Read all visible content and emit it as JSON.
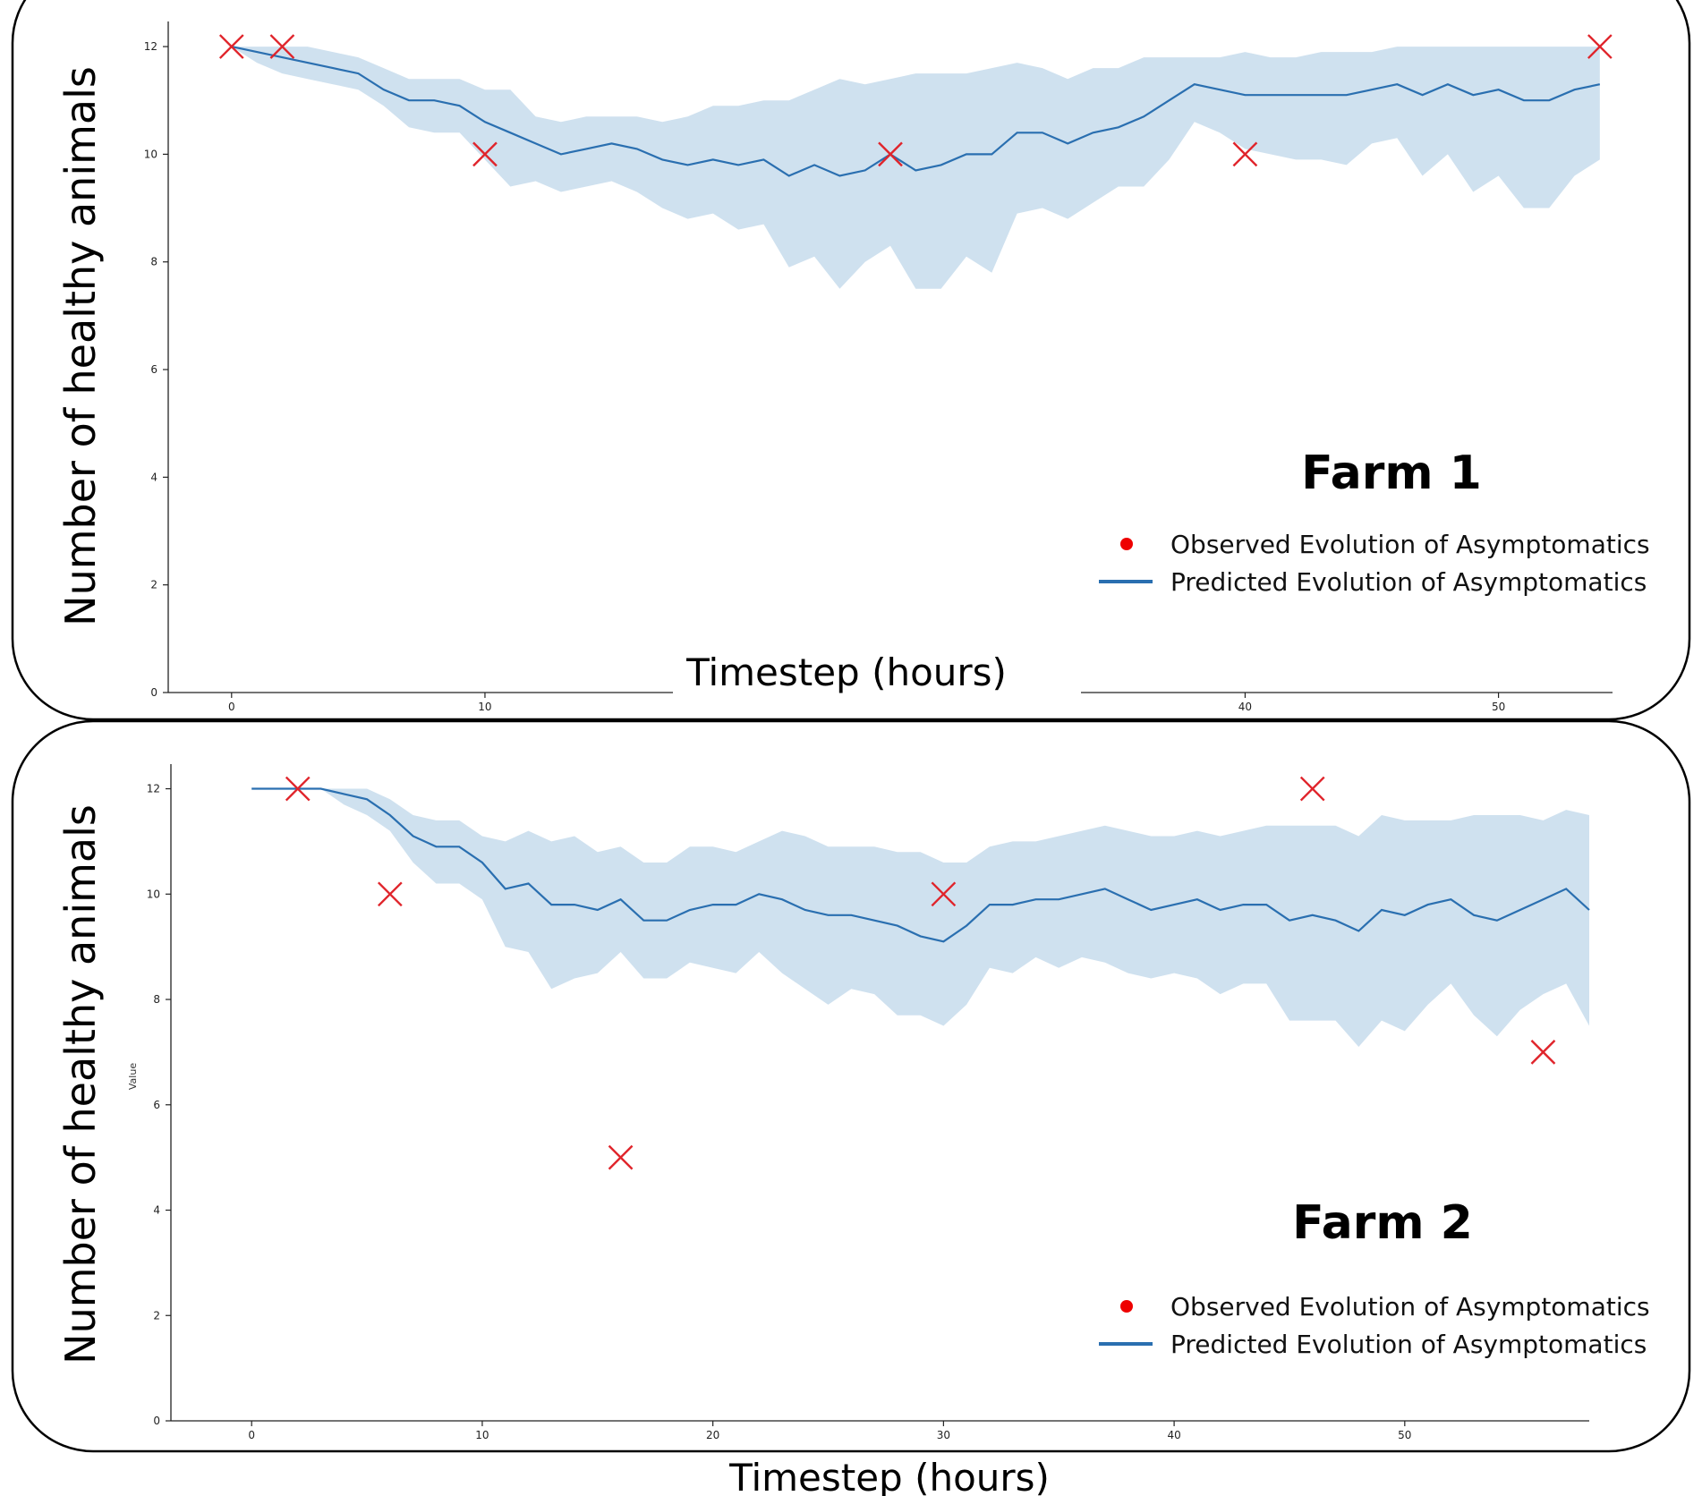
{
  "colors": {
    "band": "#cfe1ef",
    "line": "#2a6fb0",
    "marker": "#e0242b",
    "legend_dot": "#ee0000",
    "axis": "#222222",
    "frame": "#000000"
  },
  "chart_data": [
    {
      "type": "line",
      "panel_label": "Farm 1",
      "xlabel": "Timestep (hours)",
      "ylabel": "Number of healthy animals",
      "xlim": [
        -2.5,
        54.5
      ],
      "ylim": [
        0,
        12.4
      ],
      "xticks": [
        0,
        10,
        40,
        50
      ],
      "xtick_labels": [
        "0",
        "10",
        "40",
        "50"
      ],
      "yticks": [
        0,
        2,
        4,
        6,
        8,
        10,
        12
      ],
      "ytick_labels": [
        "0",
        "2",
        "4",
        "6",
        "8",
        "10",
        "12"
      ],
      "legend": {
        "position": "lower-right",
        "observed": "Observed Evolution of Asymptomatics",
        "predicted": "Predicted Evolution of Asymptomatics"
      },
      "predicted": {
        "x": [
          0,
          1,
          2,
          3,
          4,
          5,
          6,
          7,
          8,
          9,
          10,
          11,
          12,
          13,
          14,
          15,
          16,
          17,
          18,
          19,
          20,
          21,
          22,
          23,
          24,
          25,
          26,
          27,
          28,
          29,
          30,
          31,
          32,
          33,
          34,
          35,
          36,
          37,
          38,
          39,
          40,
          41,
          42,
          43,
          44,
          45,
          46,
          47,
          48,
          49,
          50,
          51,
          52,
          53,
          54
        ],
        "mean": [
          12.0,
          11.9,
          11.8,
          11.7,
          11.6,
          11.5,
          11.2,
          11.0,
          11.0,
          10.9,
          10.6,
          10.4,
          10.2,
          10.0,
          10.1,
          10.2,
          10.1,
          9.9,
          9.8,
          9.9,
          9.8,
          9.9,
          9.6,
          9.8,
          9.6,
          9.7,
          10.0,
          9.7,
          9.8,
          10.0,
          10.0,
          10.4,
          10.4,
          10.2,
          10.4,
          10.5,
          10.7,
          11.0,
          11.3,
          11.2,
          11.1,
          11.1,
          11.1,
          11.1,
          11.1,
          11.2,
          11.3,
          11.1,
          11.3,
          11.1,
          11.2,
          11.0,
          11.0,
          11.2,
          11.3
        ],
        "upper": [
          12.0,
          12.0,
          12.0,
          12.0,
          11.9,
          11.8,
          11.6,
          11.4,
          11.4,
          11.4,
          11.2,
          11.2,
          10.7,
          10.6,
          10.7,
          10.7,
          10.7,
          10.6,
          10.7,
          10.9,
          10.9,
          11.0,
          11.0,
          11.2,
          11.4,
          11.3,
          11.4,
          11.5,
          11.5,
          11.5,
          11.6,
          11.7,
          11.6,
          11.4,
          11.6,
          11.6,
          11.8,
          11.8,
          11.8,
          11.8,
          11.9,
          11.8,
          11.8,
          11.9,
          11.9,
          11.9,
          12.0,
          12.0,
          12.0,
          12.0,
          12.0,
          12.0,
          12.0,
          12.0,
          12.0
        ],
        "lower": [
          12.0,
          11.7,
          11.5,
          11.4,
          11.3,
          11.2,
          10.9,
          10.5,
          10.4,
          10.4,
          9.9,
          9.4,
          9.5,
          9.3,
          9.4,
          9.5,
          9.3,
          9.0,
          8.8,
          8.9,
          8.6,
          8.7,
          7.9,
          8.1,
          7.5,
          8.0,
          8.3,
          7.5,
          7.5,
          8.1,
          7.8,
          8.9,
          9.0,
          8.8,
          9.1,
          9.4,
          9.4,
          9.9,
          10.6,
          10.4,
          10.1,
          10.0,
          9.9,
          9.9,
          9.8,
          10.2,
          10.3,
          9.6,
          10.0,
          9.3,
          9.6,
          9.0,
          9.0,
          9.6,
          9.9
        ]
      },
      "observed": {
        "x": [
          0,
          2,
          10,
          26,
          40,
          54
        ],
        "y": [
          12,
          12,
          10,
          10,
          10,
          12
        ]
      }
    },
    {
      "type": "line",
      "panel_label": "Farm 2",
      "xlabel": "Timestep (hours)",
      "ylabel": "Number of healthy animals",
      "small_ylabel": "Value",
      "xlim": [
        -3.5,
        58
      ],
      "ylim": [
        0,
        12.4
      ],
      "xticks": [
        0,
        10,
        20,
        30,
        40,
        50
      ],
      "xtick_labels": [
        "0",
        "10",
        "20",
        "30",
        "40",
        "50"
      ],
      "yticks": [
        0,
        2,
        4,
        6,
        8,
        10,
        12
      ],
      "ytick_labels": [
        "0",
        "2",
        "4",
        "6",
        "8",
        "10",
        "12"
      ],
      "legend": {
        "position": "lower-right",
        "observed": "Observed Evolution of Asymptomatics",
        "predicted": "Predicted Evolution of Asymptomatics"
      },
      "predicted": {
        "x": [
          0,
          1,
          2,
          3,
          4,
          5,
          6,
          7,
          8,
          9,
          10,
          11,
          12,
          13,
          14,
          15,
          16,
          17,
          18,
          19,
          20,
          21,
          22,
          23,
          24,
          25,
          26,
          27,
          28,
          29,
          30,
          31,
          32,
          33,
          34,
          35,
          36,
          37,
          38,
          39,
          40,
          41,
          42,
          43,
          44,
          45,
          46,
          47,
          48,
          49,
          50,
          51,
          52,
          53,
          54,
          55,
          56,
          57,
          58
        ],
        "mean": [
          12.0,
          12.0,
          12.0,
          12.0,
          11.9,
          11.8,
          11.5,
          11.1,
          10.9,
          10.9,
          10.6,
          10.1,
          10.2,
          9.8,
          9.8,
          9.7,
          9.9,
          9.5,
          9.5,
          9.7,
          9.8,
          9.8,
          10.0,
          9.9,
          9.7,
          9.6,
          9.6,
          9.5,
          9.4,
          9.2,
          9.1,
          9.4,
          9.8,
          9.8,
          9.9,
          9.9,
          10.0,
          10.1,
          9.9,
          9.7,
          9.8,
          9.9,
          9.7,
          9.8,
          9.8,
          9.5,
          9.6,
          9.5,
          9.3,
          9.7,
          9.6,
          9.8,
          9.9,
          9.6,
          9.5,
          9.7,
          9.9,
          10.1,
          9.7
        ],
        "upper": [
          12.0,
          12.0,
          12.0,
          12.0,
          12.0,
          12.0,
          11.8,
          11.5,
          11.4,
          11.4,
          11.1,
          11.0,
          11.2,
          11.0,
          11.1,
          10.8,
          10.9,
          10.6,
          10.6,
          10.9,
          10.9,
          10.8,
          11.0,
          11.2,
          11.1,
          10.9,
          10.9,
          10.9,
          10.8,
          10.8,
          10.6,
          10.6,
          10.9,
          11.0,
          11.0,
          11.1,
          11.2,
          11.3,
          11.2,
          11.1,
          11.1,
          11.2,
          11.1,
          11.2,
          11.3,
          11.3,
          11.3,
          11.3,
          11.1,
          11.5,
          11.4,
          11.4,
          11.4,
          11.5,
          11.5,
          11.5,
          11.4,
          11.6,
          11.5
        ],
        "lower": [
          12.0,
          12.0,
          12.0,
          12.0,
          11.7,
          11.5,
          11.2,
          10.6,
          10.2,
          10.2,
          9.9,
          9.0,
          8.9,
          8.2,
          8.4,
          8.5,
          8.9,
          8.4,
          8.4,
          8.7,
          8.6,
          8.5,
          8.9,
          8.5,
          8.2,
          7.9,
          8.2,
          8.1,
          7.7,
          7.7,
          7.5,
          7.9,
          8.6,
          8.5,
          8.8,
          8.6,
          8.8,
          8.7,
          8.5,
          8.4,
          8.5,
          8.4,
          8.1,
          8.3,
          8.3,
          7.6,
          7.6,
          7.6,
          7.1,
          7.6,
          7.4,
          7.9,
          8.3,
          7.7,
          7.3,
          7.8,
          8.1,
          8.3,
          7.5
        ]
      },
      "observed": {
        "x": [
          2,
          6,
          16,
          30,
          46,
          56
        ],
        "y": [
          12,
          10,
          5,
          10,
          12,
          7
        ]
      }
    }
  ]
}
